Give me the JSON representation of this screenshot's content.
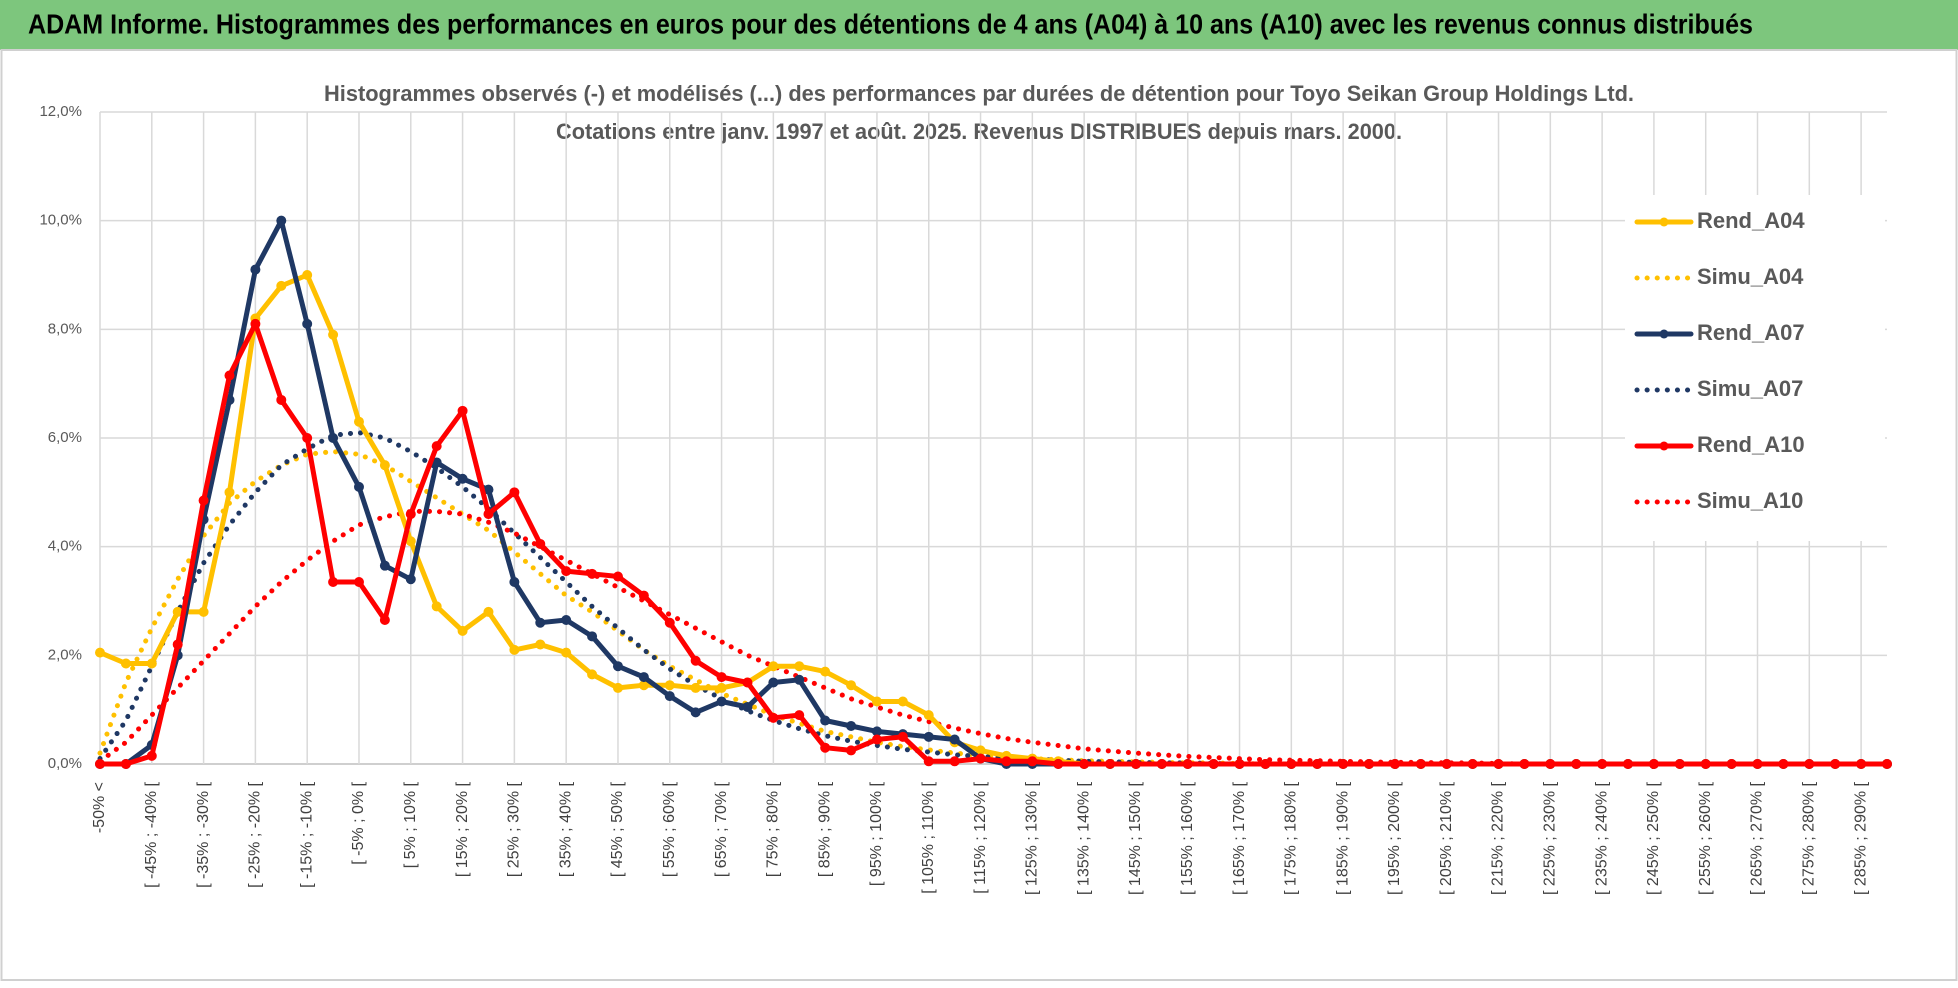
{
  "header": "ADAM Informe. Histogrammes des performances en euros pour des détentions de 4 ans (A04) à 10 ans (A10) avec les revenus connus distribués",
  "chart_data": {
    "type": "line",
    "title": "Histogrammes observés (-) et modélisés (...) des performances par durées de détention pour Toyo Seikan Group Holdings Ltd.",
    "subtitle": "Cotations entre janv. 1997 et août. 2025. Revenus DISTRIBUES depuis mars. 2000.",
    "categories": [
      "-50% <",
      null,
      "[ -45% ; -40% [",
      null,
      "[ -35% ; -30% [",
      null,
      "[ -25% ; -20% [",
      null,
      "[ -15% ; -10% [",
      null,
      "[ -5% ; 0% [",
      null,
      "[ 5% ; 10% [",
      null,
      "[ 15% ; 20% [",
      null,
      "[ 25% ; 30% [",
      null,
      "[ 35% ; 40% [",
      null,
      "[ 45% ; 50% [",
      null,
      "[ 55% ; 60% [",
      null,
      "[ 65% ; 70% [",
      null,
      "[ 75% ; 80% [",
      null,
      "[ 85% ; 90% [",
      null,
      "[ 95% ; 100% [",
      null,
      "[ 105% ; 110% [",
      null,
      "[ 115% ; 120% [",
      null,
      "[ 125% ; 130% [",
      null,
      "[ 135% ; 140% [",
      null,
      "[ 145% ; 150% [",
      null,
      "[ 155% ; 160% [",
      null,
      "[ 165% ; 170% [",
      null,
      "[ 175% ; 180% [",
      null,
      "[ 185% ; 190% [",
      null,
      "[ 195% ; 200% [",
      null,
      "[ 205% ; 210% [",
      null,
      "[ 215% ; 220% [",
      null,
      "[ 225% ; 230% [",
      null,
      "[ 235% ; 240% [",
      null,
      "[ 245% ; 250% [",
      null,
      "[ 255% ; 260% [",
      null,
      "[ 265% ; 270% [",
      null,
      "[ 275% ; 280% [",
      null,
      "[ 285% ; 290% [",
      null
    ],
    "series": [
      {
        "name": "Rend_A04",
        "color": "#FFC000",
        "style": "solid",
        "marker": true,
        "values": [
          2.05,
          1.85,
          1.85,
          2.8,
          2.8,
          5.0,
          8.2,
          8.8,
          9.0,
          7.9,
          6.3,
          5.5,
          4.1,
          2.9,
          2.45,
          2.8,
          2.1,
          2.2,
          2.05,
          1.65,
          1.4,
          1.45,
          1.45,
          1.4,
          1.4,
          1.5,
          1.8,
          1.8,
          1.7,
          1.45,
          1.15,
          1.15,
          0.9,
          0.4,
          0.25,
          0.15,
          0.1,
          0.05,
          0,
          0,
          0,
          0,
          0,
          0,
          0,
          0,
          0,
          0,
          0,
          0,
          0,
          0,
          0,
          0,
          0,
          0,
          0,
          0,
          0,
          0,
          0,
          0,
          0,
          0,
          0,
          0,
          0,
          0,
          0,
          0
        ]
      },
      {
        "name": "Simu_A04",
        "color": "#FFC000",
        "style": "dotted",
        "marker": false,
        "values": [
          0.2,
          1.5,
          2.5,
          3.4,
          4.2,
          4.8,
          5.2,
          5.5,
          5.7,
          5.75,
          5.7,
          5.5,
          5.2,
          4.9,
          4.6,
          4.3,
          3.9,
          3.5,
          3.1,
          2.8,
          2.45,
          2.1,
          1.8,
          1.55,
          1.3,
          1.1,
          0.9,
          0.75,
          0.6,
          0.5,
          0.4,
          0.32,
          0.26,
          0.2,
          0.16,
          0.13,
          0.1,
          0.08,
          0.06,
          0.05,
          0.04,
          0.03,
          0.02,
          0.02,
          0.01,
          0,
          0,
          0,
          0,
          0,
          0,
          0,
          0,
          0,
          0,
          0,
          0,
          0,
          0,
          0,
          0,
          0,
          0,
          0,
          0,
          0,
          0,
          0,
          0,
          0
        ]
      },
      {
        "name": "Rend_A07",
        "color": "#1F3864",
        "style": "solid",
        "marker": true,
        "values": [
          0,
          0,
          0.35,
          2.0,
          4.5,
          6.7,
          9.1,
          10.0,
          8.1,
          6.0,
          5.1,
          3.65,
          3.4,
          5.55,
          5.25,
          5.05,
          3.35,
          2.6,
          2.65,
          2.35,
          1.8,
          1.6,
          1.25,
          0.95,
          1.15,
          1.05,
          1.5,
          1.55,
          0.8,
          0.7,
          0.6,
          0.55,
          0.5,
          0.45,
          0.1,
          0,
          0,
          0,
          0,
          0,
          0,
          0,
          0,
          0,
          0,
          0,
          0,
          0,
          0,
          0,
          0,
          0,
          0,
          0,
          0,
          0,
          0,
          0,
          0,
          0,
          0,
          0,
          0,
          0,
          0,
          0,
          0,
          0,
          0,
          0
        ]
      },
      {
        "name": "Simu_A07",
        "color": "#1F3864",
        "style": "dotted",
        "marker": false,
        "values": [
          0.1,
          0.8,
          1.8,
          2.8,
          3.7,
          4.4,
          5.0,
          5.5,
          5.8,
          6.05,
          6.1,
          6.0,
          5.75,
          5.45,
          5.1,
          4.7,
          4.25,
          3.8,
          3.35,
          2.9,
          2.5,
          2.1,
          1.75,
          1.45,
          1.2,
          0.98,
          0.8,
          0.65,
          0.52,
          0.42,
          0.34,
          0.27,
          0.22,
          0.17,
          0.14,
          0.11,
          0.09,
          0.07,
          0.05,
          0.04,
          0.03,
          0.02,
          0.02,
          0.01,
          0,
          0,
          0,
          0,
          0,
          0,
          0,
          0,
          0,
          0,
          0,
          0,
          0,
          0,
          0,
          0,
          0,
          0,
          0,
          0,
          0,
          0,
          0,
          0,
          0,
          0
        ]
      },
      {
        "name": "Rend_A10",
        "color": "#FF0000",
        "style": "solid",
        "marker": true,
        "values": [
          0,
          0,
          0.15,
          2.2,
          4.85,
          7.15,
          8.1,
          6.7,
          6.0,
          3.35,
          3.35,
          2.65,
          4.6,
          5.85,
          6.5,
          4.6,
          5.0,
          4.05,
          3.55,
          3.5,
          3.45,
          3.1,
          2.6,
          1.9,
          1.6,
          1.5,
          0.85,
          0.9,
          0.3,
          0.25,
          0.45,
          0.5,
          0.05,
          0.05,
          0.1,
          0.05,
          0.05,
          0,
          0,
          0,
          0,
          0,
          0,
          0,
          0,
          0,
          0,
          0,
          0,
          0,
          0,
          0,
          0,
          0,
          0,
          0,
          0,
          0,
          0,
          0,
          0,
          0,
          0,
          0,
          0,
          0,
          0,
          0,
          0,
          0
        ]
      },
      {
        "name": "Simu_A10",
        "color": "#FF0000",
        "style": "dotted",
        "marker": false,
        "values": [
          0.05,
          0.4,
          0.9,
          1.4,
          1.9,
          2.4,
          2.9,
          3.35,
          3.75,
          4.1,
          4.4,
          4.55,
          4.65,
          4.65,
          4.6,
          4.45,
          4.25,
          4.0,
          3.75,
          3.5,
          3.25,
          3.0,
          2.75,
          2.5,
          2.25,
          2.0,
          1.8,
          1.6,
          1.4,
          1.2,
          1.05,
          0.9,
          0.78,
          0.66,
          0.56,
          0.47,
          0.4,
          0.34,
          0.28,
          0.24,
          0.2,
          0.17,
          0.14,
          0.12,
          0.1,
          0.08,
          0.07,
          0.06,
          0.05,
          0.04,
          0.03,
          0.03,
          0.02,
          0.02,
          0.01,
          0,
          0,
          0,
          0,
          0,
          0,
          0,
          0,
          0,
          0,
          0,
          0,
          0,
          0,
          0
        ]
      }
    ],
    "ylim": [
      0,
      12
    ],
    "yticks": [
      {
        "value": 0,
        "label": "0,0%"
      },
      {
        "value": 2,
        "label": "2,0%"
      },
      {
        "value": 4,
        "label": "4,0%"
      },
      {
        "value": 6,
        "label": "6,0%"
      },
      {
        "value": 8,
        "label": "8,0%"
      },
      {
        "value": 10,
        "label": "10,0%"
      },
      {
        "value": 12,
        "label": "12,0%"
      }
    ],
    "grid": true,
    "legend": "right"
  }
}
